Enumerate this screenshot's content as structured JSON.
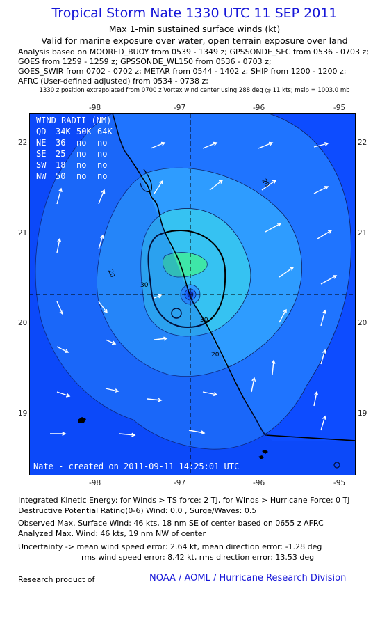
{
  "header": {
    "title": "Tropical Storm Nate 1330 UTC 11 SEP 2011",
    "subtitle": "Max 1-min sustained surface winds (kt)",
    "validity": "Valid for marine exposure over water, open terrain exposure over land",
    "analysis_lines": [
      "Analysis based on MOORED_BUOY from 0539 - 1349 z; GPSSONDE_SFC from 0536 - 0703 z;",
      "GOES from 1259 - 1259 z; GPSSONDE_WL150 from 0536 - 0703 z;",
      "GOES_SWIR from 0702 - 0702 z; METAR from 0544 - 1402 z; SHIP from 1200 - 1200 z;",
      "AFRC (User-defined adjusted) from 0534 - 0738 z;"
    ],
    "position_note": "1330 z position extrapolated from 0700 z Vortex wind center using 288 deg @ 11 kts; mslp = 1003.0 mb"
  },
  "map": {
    "lon_ticks": [
      "-98",
      "-97",
      "-96",
      "-95"
    ],
    "lat_ticks": [
      "22",
      "21",
      "20",
      "19"
    ],
    "wind_radii": {
      "title": "WIND RADII (NM)",
      "columns": [
        "QD",
        "34K",
        "50K",
        "64K"
      ],
      "rows": [
        [
          "NE",
          "36",
          "no",
          "no"
        ],
        [
          "SE",
          "25",
          "no",
          "no"
        ],
        [
          "SW",
          "18",
          "no",
          "no"
        ],
        [
          "NW",
          "50",
          "no",
          "no"
        ]
      ]
    },
    "contour_labels": [
      "20",
      "30",
      "30",
      "20",
      "20"
    ],
    "center": {
      "lon": -96.98,
      "lat": 20.31
    },
    "credit": "Nate - created on 2011-09-11 14:25:01 UTC",
    "colors": {
      "ocean_blue": "#0d4cff",
      "contour_10_20": "#1f74ff",
      "contour_20_30": "#2e9cff",
      "contour_30_40": "#36c2f2",
      "contour_40_50": "#3ee6a8"
    }
  },
  "stats": {
    "ike": "Integrated Kinetic Energy:  for Winds > TS force: 2 TJ,  for Winds > Hurricane Force: 0 TJ",
    "dpr": "Destructive Potential Rating(0-6)   Wind: 0.0 , Surge/Waves: 0.5",
    "observed": "Observed Max. Surface Wind: 46 kts, 18 nm SE of center based on 0655 z AFRC",
    "analyzed": "Analyzed Max. Wind: 46 kts, 19 nm NW of center",
    "uncertainty1": "Uncertainty -> mean wind speed error: 2.64 kt,   mean direction error:  -1.28 deg",
    "uncertainty2": "rms wind speed error: 8.42 kt,   rms direction error: 13.53 deg"
  },
  "footer": {
    "research": "Research product of",
    "org": "NOAA / AOML / Hurricane Research Division"
  }
}
